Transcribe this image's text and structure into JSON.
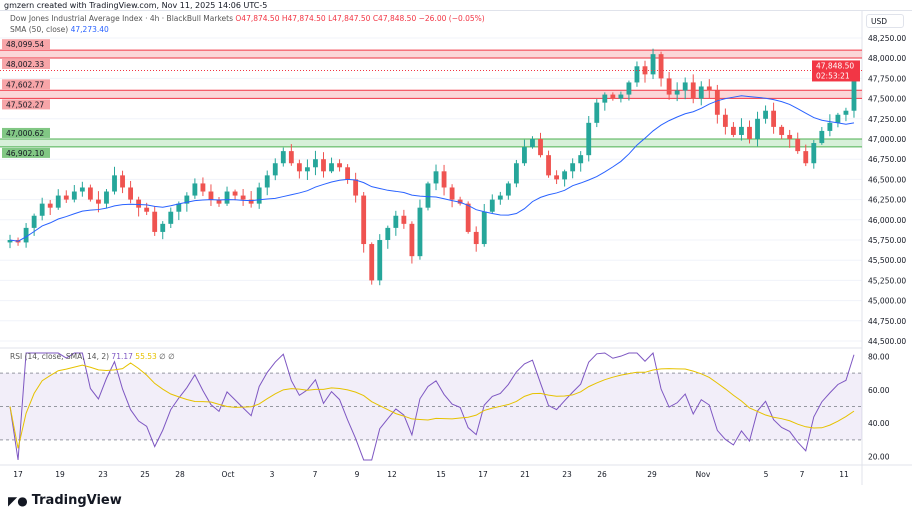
{
  "header": {
    "credit": "gmzern created with TradingView.com, Nov 11, 2025 14:06 UTC-5"
  },
  "legend": {
    "symbol": "Dow Jones Industrial Average Index · 4h · BlackBull Markets",
    "o": "O47,874.50",
    "h": "H47,874.50",
    "l": "L47,847.50",
    "c": "C47,848.50",
    "chg": "−26.00 (−0.05%)",
    "sma_label": "SMA (50, close)",
    "sma_value": "47,273.40"
  },
  "rsi_legend": {
    "label": "RSI (14, close, SMA, 14, 2)",
    "rsi": "71.17",
    "sma": "55.53",
    "extra1": "∅",
    "extra2": "∅"
  },
  "currency": "USD",
  "brand": "TradingView",
  "colors": {
    "up": "#26a69a",
    "down": "#ef5350",
    "sma": "#2962ff",
    "rsi": "#7e57c2",
    "rsi_sma": "#e6c200",
    "resistance": "#f7b4b8",
    "support": "#b7e3b9"
  },
  "chart_data": {
    "type": "candlestick",
    "price_axis": {
      "ticks": [
        "48,250.00",
        "48,000.00",
        "47,750.00",
        "47,500.00",
        "47,250.00",
        "47,000.00",
        "46,750.00",
        "46,500.00",
        "46,250.00",
        "46,000.00",
        "45,750.00",
        "45,500.00",
        "45,250.00",
        "45,000.00",
        "44,750.00",
        "44,500.00"
      ],
      "ylim": [
        44400,
        48400
      ]
    },
    "rsi_axis": {
      "ticks": [
        "80.00",
        "60.00",
        "40.00",
        "20.00"
      ],
      "ylim": [
        15,
        85
      ],
      "bands": [
        30,
        70
      ]
    },
    "date_axis": [
      "17",
      "19",
      "23",
      "25",
      "28",
      "Oct",
      "3",
      "7",
      "9",
      "12",
      "15",
      "17",
      "21",
      "23",
      "26",
      "29",
      "Nov",
      "5",
      "7",
      "11"
    ],
    "zones": [
      {
        "kind": "resistance",
        "top": 48099.54,
        "bottom": 48002.33,
        "labels": [
          "48,099.54",
          "48,002.33"
        ]
      },
      {
        "kind": "resistance",
        "top": 47602.77,
        "bottom": 47502.27,
        "labels": [
          "47,602.77",
          "47,502.27"
        ]
      },
      {
        "kind": "support",
        "top": 47000.62,
        "bottom": 46902.1,
        "labels": [
          "47,000.62",
          "46,902.10"
        ]
      }
    ],
    "last_price": {
      "price": "47,848.50",
      "countdown": "02:53:21",
      "value": 47848.5
    },
    "closes": [
      45750,
      45720,
      45900,
      46050,
      46200,
      46150,
      46300,
      46250,
      46350,
      46400,
      46250,
      46200,
      46350,
      46550,
      46400,
      46250,
      46150,
      46100,
      45850,
      45950,
      46100,
      46200,
      46300,
      46450,
      46350,
      46250,
      46200,
      46350,
      46300,
      46250,
      46200,
      46400,
      46550,
      46700,
      46850,
      46700,
      46600,
      46650,
      46750,
      46600,
      46700,
      46650,
      46500,
      46300,
      45700,
      45250,
      45750,
      45900,
      46050,
      45950,
      45550,
      46150,
      46450,
      46600,
      46400,
      46250,
      46200,
      45850,
      45700,
      46100,
      46250,
      46300,
      46450,
      46700,
      46900,
      47000,
      46800,
      46550,
      46500,
      46600,
      46700,
      46800,
      47200,
      47450,
      47550,
      47500,
      47550,
      47700,
      47900,
      47800,
      48050,
      47750,
      47550,
      47600,
      47700,
      47500,
      47650,
      47600,
      47300,
      47150,
      47050,
      47150,
      47000,
      47250,
      47350,
      47150,
      47050,
      47000,
      46850,
      46700,
      46950,
      47100,
      47200,
      47300,
      47350,
      47848.5
    ]
  }
}
